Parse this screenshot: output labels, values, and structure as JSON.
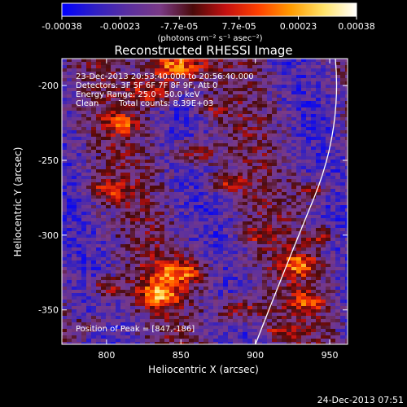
{
  "colorbar": {
    "tick_labels": [
      "-0.00038",
      "-0.00023",
      "-7.7e-05",
      "7.7e-05",
      "0.00023",
      "0.00038"
    ],
    "tick_values": [
      -0.00038,
      -0.00023,
      -7.7e-05,
      7.7e-05,
      0.00023,
      0.00038
    ],
    "range": [
      -0.00038,
      0.00038
    ],
    "units": "(photons cm⁻² s⁻¹ asec⁻²)",
    "colormap": [
      "#0000ff",
      "#2f1fc4",
      "#5a2fa0",
      "#7a3a86",
      "#4a0a0a",
      "#c41010",
      "#ff4000",
      "#ff9c00",
      "#ffe36a",
      "#ffffff"
    ]
  },
  "plot": {
    "title": "Reconstructed RHESSI Image",
    "xlabel": "Heliocentric X (arcsec)",
    "ylabel": "Heliocentric Y (arcsec)",
    "xticks": [
      "800",
      "850",
      "900",
      "950"
    ],
    "yticks": [
      "-200",
      "-250",
      "-300",
      "-350"
    ],
    "xlim": [
      770,
      962
    ],
    "ylim": [
      -373,
      -182
    ],
    "time_range": "23-Dec-2013 20:53:40.000 to 20:56:40.000",
    "detectors": "Detectors: 3F 5F 6F 7F 8F 9F, Att 0",
    "energy_range": "Energy Range: 25.0 - 50.0 keV",
    "algorithm": "Clean",
    "total_counts": "Total counts: 8.39E+03",
    "peak": "Position of Peak = [847,-186]",
    "limb_color": "#ffffff"
  },
  "footer": {
    "timestamp": "24-Dec-2013 07:51"
  }
}
